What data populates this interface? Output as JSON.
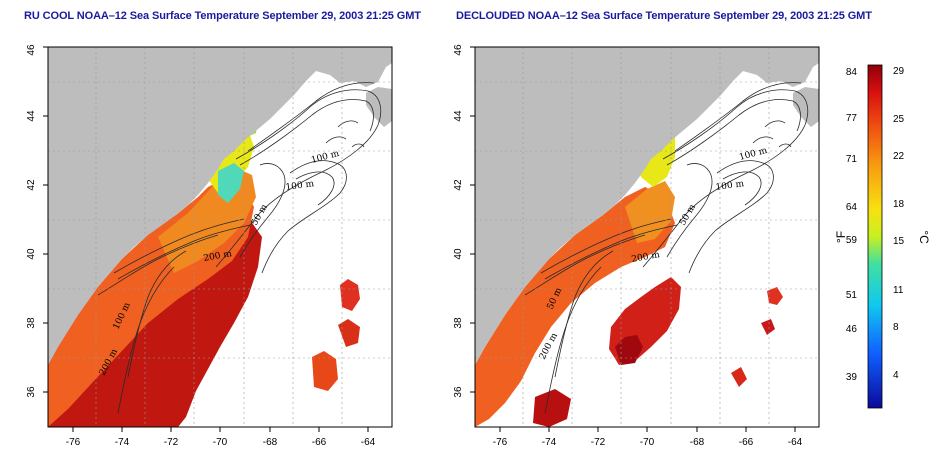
{
  "panels": [
    {
      "title": "RU COOL NOAA–12 Sea Surface Temperature September 29, 2003 21:25 GMT",
      "contours": [
        "100 m",
        "100 m",
        "50 m",
        "200 m",
        "100 m",
        "200 m"
      ]
    },
    {
      "title": "DECLOUDED NOAA–12 Sea Surface Temperature September 29, 2003 21:25 GMT",
      "contours": [
        "100 m",
        "100 m",
        "50 m",
        "200 m",
        "50 m",
        "200 m"
      ]
    }
  ],
  "map": {
    "lon_ticks": [
      "-76",
      "-74",
      "-72",
      "-70",
      "-68",
      "-66",
      "-64"
    ],
    "lat_ticks": [
      "36",
      "38",
      "40",
      "42",
      "44",
      "46"
    ],
    "lon_range": [
      -77,
      -63
    ],
    "lat_range": [
      35,
      46
    ],
    "colors": {
      "land": "#bdbdbd",
      "ocean_no_data": "#ffffff",
      "title": "#1a1aa0"
    }
  },
  "colorbar": {
    "fahrenheit_unit": "°F",
    "celsius_unit": "°C",
    "fahrenheit_ticks": [
      "84",
      "77",
      "71",
      "64",
      "59",
      "51",
      "46",
      "39"
    ],
    "celsius_ticks": [
      "29",
      "25",
      "22",
      "18",
      "15",
      "11",
      "8",
      "4"
    ],
    "celsius_range": [
      1,
      29
    ]
  }
}
